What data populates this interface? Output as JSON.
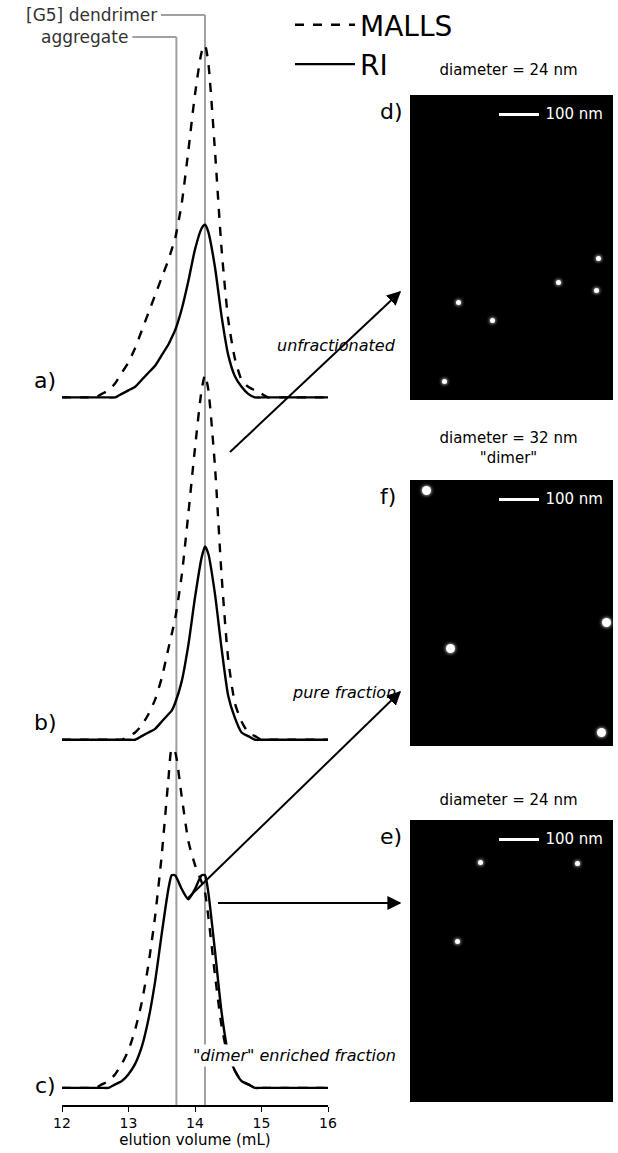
{
  "chart_data": [
    {
      "type": "line",
      "label": "a)",
      "title": "unfractionated",
      "tick_labels": false,
      "legend": "top right",
      "ylim": [
        -0.05,
        1
      ],
      "x": [
        12.0,
        12.1,
        12.2,
        12.3,
        12.4,
        12.5,
        12.6,
        12.7,
        12.8,
        12.9,
        13.0,
        13.1,
        13.2,
        13.3,
        13.4,
        13.5,
        13.6,
        13.65,
        13.7,
        13.8,
        13.9,
        14.0,
        14.1,
        14.15,
        14.2,
        14.3,
        14.4,
        14.5,
        14.6,
        14.7,
        14.8,
        14.9,
        15.0,
        15.1,
        15.2,
        15.3,
        15.4,
        15.5,
        15.6,
        15.7,
        15.8,
        15.9,
        16.0
      ],
      "series": [
        {
          "name": "MALLS",
          "color": "#000000",
          "line_style": "dash",
          "values": [
            0,
            0,
            0,
            0,
            0,
            0,
            0.01,
            0.02,
            0.04,
            0.07,
            0.1,
            0.14,
            0.19,
            0.24,
            0.29,
            0.34,
            0.39,
            0.42,
            0.45,
            0.55,
            0.7,
            0.86,
            0.98,
            1.0,
            0.95,
            0.7,
            0.42,
            0.22,
            0.11,
            0.05,
            0.03,
            0.02,
            0.01,
            0,
            0,
            0,
            0,
            0,
            0,
            0,
            0,
            0,
            0
          ]
        },
        {
          "name": "RI",
          "color": "#000000",
          "line_style": "solid",
          "values": [
            0,
            0,
            0,
            0,
            0,
            0,
            0,
            0,
            0,
            0.01,
            0.02,
            0.03,
            0.05,
            0.07,
            0.09,
            0.12,
            0.15,
            0.17,
            0.19,
            0.25,
            0.33,
            0.42,
            0.48,
            0.49,
            0.47,
            0.37,
            0.23,
            0.12,
            0.06,
            0.03,
            0.01,
            0,
            0,
            0,
            0,
            0,
            0,
            0,
            0,
            0,
            0,
            0,
            0
          ]
        }
      ]
    },
    {
      "type": "line",
      "label": "b)",
      "title": "pure fraction",
      "tick_labels": false,
      "ylim": [
        -0.05,
        1
      ],
      "x": [
        12.0,
        12.1,
        12.2,
        12.3,
        12.4,
        12.5,
        12.6,
        12.7,
        12.8,
        12.9,
        13.0,
        13.1,
        13.2,
        13.3,
        13.4,
        13.5,
        13.6,
        13.65,
        13.7,
        13.8,
        13.9,
        14.0,
        14.1,
        14.15,
        14.2,
        14.3,
        14.4,
        14.5,
        14.6,
        14.7,
        14.8,
        14.9,
        15.0,
        15.1,
        15.2,
        15.3,
        15.4,
        15.5,
        15.6,
        15.7,
        15.8,
        15.9,
        16.0
      ],
      "series": [
        {
          "name": "MALLS",
          "color": "#000000",
          "line_style": "dash",
          "values": [
            0,
            0,
            0,
            0,
            0,
            0,
            0,
            0,
            0,
            0,
            0.01,
            0.02,
            0.04,
            0.07,
            0.11,
            0.17,
            0.25,
            0.29,
            0.33,
            0.45,
            0.62,
            0.8,
            0.96,
            1.0,
            0.96,
            0.75,
            0.45,
            0.22,
            0.1,
            0.05,
            0.02,
            0.01,
            0,
            0,
            0,
            0,
            0,
            0,
            0,
            0,
            0,
            0,
            0
          ]
        },
        {
          "name": "RI",
          "color": "#000000",
          "line_style": "solid",
          "values": [
            0,
            0,
            0,
            0,
            0,
            0,
            0,
            0,
            0,
            0,
            0,
            0,
            0.01,
            0.02,
            0.03,
            0.05,
            0.07,
            0.08,
            0.1,
            0.16,
            0.26,
            0.39,
            0.5,
            0.53,
            0.51,
            0.4,
            0.25,
            0.12,
            0.06,
            0.02,
            0.01,
            0,
            0,
            0,
            0,
            0,
            0,
            0,
            0,
            0,
            0,
            0,
            0
          ]
        }
      ]
    },
    {
      "type": "line",
      "label": "c)",
      "title": "\"dimer\" enriched fraction",
      "tick_labels": "x",
      "xlabel": "elution volume (mL)",
      "xlim": [
        12,
        16
      ],
      "xticks": [
        12,
        13,
        14,
        15,
        16
      ],
      "ylim": [
        -0.05,
        1
      ],
      "x": [
        12.0,
        12.1,
        12.2,
        12.3,
        12.4,
        12.5,
        12.6,
        12.7,
        12.8,
        12.9,
        13.0,
        13.1,
        13.2,
        13.3,
        13.4,
        13.5,
        13.6,
        13.65,
        13.7,
        13.8,
        13.9,
        14.0,
        14.1,
        14.15,
        14.2,
        14.3,
        14.4,
        14.5,
        14.6,
        14.7,
        14.8,
        14.9,
        15.0,
        15.1,
        15.2,
        15.3,
        15.4,
        15.5,
        15.6,
        15.7,
        15.8,
        15.9,
        16.0
      ],
      "series": [
        {
          "name": "MALLS",
          "color": "#000000",
          "line_style": "dash",
          "values": [
            0,
            0,
            0,
            0,
            0,
            0,
            0.01,
            0.02,
            0.04,
            0.07,
            0.11,
            0.17,
            0.25,
            0.36,
            0.5,
            0.68,
            0.9,
            0.99,
            0.98,
            0.85,
            0.72,
            0.65,
            0.6,
            0.57,
            0.5,
            0.33,
            0.18,
            0.09,
            0.05,
            0.02,
            0.01,
            0,
            0,
            0,
            0,
            0,
            0,
            0,
            0,
            0,
            0,
            0,
            0
          ]
        },
        {
          "name": "RI",
          "color": "#000000",
          "line_style": "solid",
          "values": [
            0,
            0,
            0,
            0,
            0,
            0,
            0,
            0,
            0.01,
            0.02,
            0.04,
            0.07,
            0.12,
            0.2,
            0.31,
            0.45,
            0.58,
            0.62,
            0.62,
            0.58,
            0.55,
            0.58,
            0.62,
            0.62,
            0.57,
            0.4,
            0.22,
            0.1,
            0.05,
            0.02,
            0.01,
            0,
            0,
            0,
            0,
            0,
            0,
            0,
            0,
            0,
            0,
            0,
            0
          ]
        }
      ]
    }
  ],
  "reference_lines": [
    {
      "label": "[G5] dendrimer",
      "x": 14.15
    },
    {
      "label": "aggregate",
      "x": 13.72
    }
  ],
  "micrographs": [
    {
      "label": "d)",
      "caption": [
        "diameter = 24 nm"
      ],
      "scale_bar": "100 nm"
    },
    {
      "label": "f)",
      "caption": [
        "diameter = 32 nm",
        "\"dimer\""
      ],
      "scale_bar": "100 nm"
    },
    {
      "label": "e)",
      "caption": [
        "diameter = 24 nm"
      ],
      "scale_bar": "100 nm"
    }
  ]
}
